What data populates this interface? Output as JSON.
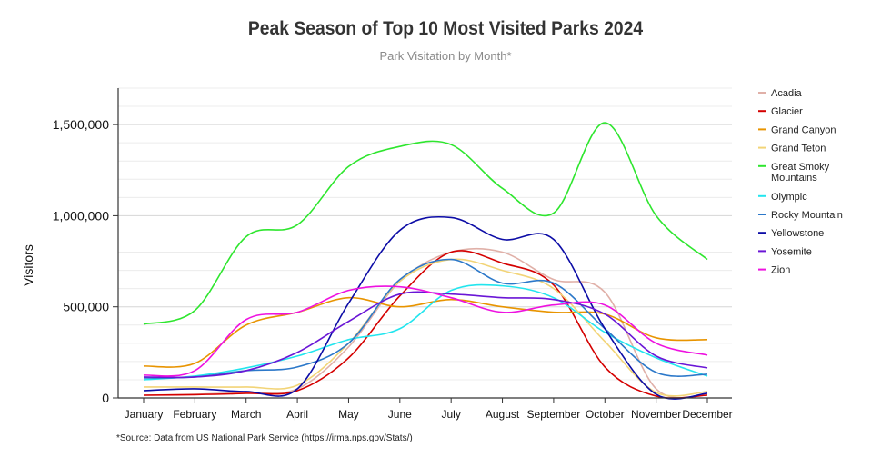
{
  "chart_data": {
    "type": "line",
    "title": "Peak Season of Top 10 Most Visited Parks 2024",
    "subtitle": "Park Visitation by Month*",
    "xlabel": "",
    "ylabel": "Visitors",
    "source": "*Source: Data from US National Park Service (https://irma.nps.gov/Stats/)",
    "ylim": [
      0,
      1700000
    ],
    "yticks": [
      0,
      500000,
      1000000,
      1500000
    ],
    "ytick_labels": [
      "0",
      "500,000",
      "1,000,000",
      "1,500,000"
    ],
    "legend_position": "right",
    "grid": true,
    "categories": [
      "January",
      "February",
      "March",
      "April",
      "May",
      "June",
      "July",
      "August",
      "September",
      "October",
      "November",
      "December"
    ],
    "series": [
      {
        "name": "Acadia",
        "color": "#e0b0a8",
        "values": [
          15000,
          20000,
          30000,
          50000,
          280000,
          640000,
          800000,
          800000,
          650000,
          580000,
          50000,
          20000
        ]
      },
      {
        "name": "Glacier",
        "color": "#d40000",
        "values": [
          15000,
          18000,
          25000,
          40000,
          220000,
          560000,
          800000,
          740000,
          620000,
          170000,
          10000,
          15000
        ]
      },
      {
        "name": "Grand Canyon",
        "color": "#e89400",
        "values": [
          175000,
          190000,
          400000,
          470000,
          550000,
          500000,
          540000,
          500000,
          470000,
          460000,
          330000,
          320000
        ]
      },
      {
        "name": "Grand Teton",
        "color": "#f2d477",
        "values": [
          60000,
          60000,
          60000,
          70000,
          300000,
          640000,
          760000,
          700000,
          600000,
          310000,
          30000,
          35000
        ]
      },
      {
        "name": "Great Smoky Mountains",
        "color": "#2ee62e",
        "values": [
          405000,
          480000,
          885000,
          950000,
          1270000,
          1380000,
          1390000,
          1150000,
          1015000,
          1510000,
          1000000,
          760000
        ]
      },
      {
        "name": "Olympic",
        "color": "#22e5ee",
        "values": [
          100000,
          120000,
          165000,
          230000,
          320000,
          380000,
          590000,
          615000,
          550000,
          360000,
          220000,
          120000
        ]
      },
      {
        "name": "Rocky Mountain",
        "color": "#2c78c9",
        "values": [
          110000,
          115000,
          150000,
          170000,
          300000,
          650000,
          760000,
          630000,
          630000,
          380000,
          140000,
          130000
        ]
      },
      {
        "name": "Yellowstone",
        "color": "#0c0ca6",
        "values": [
          40000,
          50000,
          35000,
          50000,
          520000,
          920000,
          990000,
          870000,
          870000,
          380000,
          20000,
          25000
        ]
      },
      {
        "name": "Yosemite",
        "color": "#6a16d6",
        "values": [
          115000,
          115000,
          150000,
          250000,
          420000,
          570000,
          570000,
          550000,
          540000,
          460000,
          230000,
          165000
        ]
      },
      {
        "name": "Zion",
        "color": "#ee12e0",
        "values": [
          125000,
          150000,
          430000,
          470000,
          590000,
          610000,
          550000,
          470000,
          510000,
          510000,
          300000,
          235000
        ]
      }
    ]
  }
}
